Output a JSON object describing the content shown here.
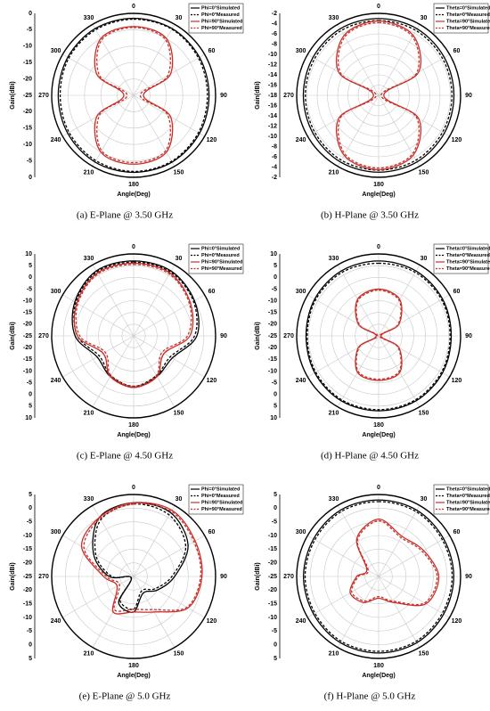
{
  "chart_data": [
    {
      "type": "polar",
      "title": "(a) E-Plane @ 3.50 GHz",
      "y_label": "Gain(dBi)",
      "x_label": "Angle(Deg)",
      "x": [
        0,
        30,
        60,
        90,
        120,
        150,
        180,
        210,
        240,
        270,
        300,
        330
      ],
      "rlim": [
        -25,
        0
      ],
      "rticks": [
        -25,
        -20,
        -15,
        -10,
        -5,
        0
      ],
      "grid": true,
      "legend": "upper right",
      "series": [
        {
          "name": "Phi=0°Simulated",
          "color": "#000000",
          "dash": false,
          "values": [
            -1.5,
            -1.5,
            -1.8,
            -2,
            -1.8,
            -1.5,
            -1.5,
            -1.5,
            -1.8,
            -2,
            -1.8,
            -1.5
          ]
        },
        {
          "name": "Phi=0°Measured",
          "color": "#000000",
          "dash": true,
          "values": [
            -1.8,
            -1.7,
            -2.2,
            -2.5,
            -2.2,
            -1.8,
            -1.8,
            -2,
            -2.3,
            -2.6,
            -2.2,
            -1.9
          ]
        },
        {
          "name": "Phi=90°Simulated",
          "color": "#c8302a",
          "dash": false,
          "values": [
            -4,
            -5,
            -12,
            -22,
            -12,
            -5,
            -4,
            -5,
            -12,
            -22,
            -12,
            -5
          ]
        },
        {
          "name": "Phi=90°Measured",
          "color": "#c8302a",
          "dash": true,
          "values": [
            -4.3,
            -5.5,
            -13,
            -23,
            -13,
            -5.5,
            -4.5,
            -5.5,
            -13,
            -23,
            -13,
            -5.5
          ]
        }
      ]
    },
    {
      "type": "polar",
      "title": "(b) H-Plane @ 3.50 GHz",
      "y_label": "Gain(dBi)",
      "x_label": "Angle(Deg)",
      "x": [
        0,
        30,
        60,
        90,
        120,
        150,
        180,
        210,
        240,
        270,
        300,
        330
      ],
      "rlim": [
        -18,
        -2
      ],
      "rticks": [
        -18,
        -16,
        -14,
        -12,
        -10,
        -8,
        -6,
        -4,
        -2
      ],
      "grid": true,
      "legend": "upper right",
      "series": [
        {
          "name": "Theta=0°Simulated",
          "color": "#000000",
          "dash": false,
          "values": [
            -3,
            -3,
            -3.2,
            -3.3,
            -3.2,
            -3,
            -3,
            -3,
            -3.2,
            -3.3,
            -3.2,
            -3
          ]
        },
        {
          "name": "Theta=0°Measured",
          "color": "#000000",
          "dash": true,
          "values": [
            -3.4,
            -3.4,
            -3.6,
            -3.7,
            -3.6,
            -3.4,
            -3.4,
            -3.4,
            -3.6,
            -3.7,
            -3.6,
            -3.4
          ]
        },
        {
          "name": "Theta=90°Simulated",
          "color": "#c8302a",
          "dash": false,
          "values": [
            -3.5,
            -4.5,
            -9,
            -17,
            -9,
            -4.5,
            -3.5,
            -4.5,
            -9,
            -17,
            -9,
            -4.5
          ]
        },
        {
          "name": "Theta=90°Measured",
          "color": "#c8302a",
          "dash": true,
          "values": [
            -3.8,
            -4.8,
            -9.5,
            -17.5,
            -9.5,
            -4.8,
            -3.8,
            -4.8,
            -9.5,
            -17.5,
            -9.5,
            -4.8
          ]
        }
      ]
    },
    {
      "type": "polar",
      "title": "(c) E-Plane @ 4.50 GHz",
      "y_label": "Gain(dBi)",
      "x_label": "Angle(Deg)",
      "x": [
        0,
        30,
        60,
        90,
        120,
        150,
        180,
        210,
        240,
        270,
        300,
        330
      ],
      "rlim": [
        -25,
        10
      ],
      "rticks": [
        -25,
        -20,
        -15,
        -10,
        -5,
        0,
        5,
        10
      ],
      "grid": true,
      "legend": "upper right",
      "series": [
        {
          "name": "Phi=0°Simulated",
          "color": "#000000",
          "dash": false,
          "values": [
            7,
            7,
            5,
            2,
            -6,
            -5,
            -3,
            -5,
            -7,
            0,
            4,
            7
          ]
        },
        {
          "name": "Phi=0°Measured",
          "color": "#000000",
          "dash": true,
          "values": [
            6.5,
            6.5,
            4.5,
            1,
            -7,
            -5.5,
            -3.5,
            -5.5,
            -8,
            -1,
            3.5,
            6.5
          ]
        },
        {
          "name": "Phi=90°Simulated",
          "color": "#c8302a",
          "dash": false,
          "values": [
            6,
            6,
            3,
            -1,
            -10,
            -5,
            -3,
            -5,
            -10,
            -1,
            3,
            6
          ]
        },
        {
          "name": "Phi=90°Measured",
          "color": "#c8302a",
          "dash": true,
          "values": [
            5.5,
            5.5,
            2.5,
            -2,
            -11,
            -5.5,
            -3.5,
            -5.5,
            -11,
            -2,
            2.5,
            5.5
          ]
        }
      ]
    },
    {
      "type": "polar",
      "title": "(d) H-Plane @ 4.50 GHz",
      "y_label": "Gain(dBi)",
      "x_label": "Angle(Deg)",
      "x": [
        0,
        30,
        60,
        90,
        120,
        150,
        180,
        210,
        240,
        270,
        300,
        330
      ],
      "rlim": [
        -25,
        10
      ],
      "rticks": [
        -25,
        -20,
        -15,
        -10,
        -5,
        0,
        5,
        10
      ],
      "grid": true,
      "legend": "upper right",
      "series": [
        {
          "name": "Theta=0°Simulated",
          "color": "#000000",
          "dash": false,
          "values": [
            7,
            7,
            6.5,
            6,
            6.5,
            7,
            7,
            7,
            6.5,
            6,
            6.5,
            7
          ]
        },
        {
          "name": "Theta=0°Measured",
          "color": "#000000",
          "dash": true,
          "values": [
            6,
            6.3,
            6,
            5.5,
            6,
            6.5,
            6.5,
            6.5,
            6,
            5.5,
            6,
            6.3
          ]
        },
        {
          "name": "Theta=90°Simulated",
          "color": "#c8302a",
          "dash": false,
          "values": [
            -5,
            -7,
            -15,
            -24,
            -15,
            -7,
            -6,
            -7,
            -15,
            -24,
            -15,
            -7
          ]
        },
        {
          "name": "Theta=90°Measured",
          "color": "#c8302a",
          "dash": true,
          "values": [
            -5.5,
            -7.5,
            -15.5,
            -24.5,
            -15.5,
            -7.5,
            -6.5,
            -7.5,
            -15.5,
            -24.5,
            -15.5,
            -7.5
          ]
        }
      ]
    },
    {
      "type": "polar",
      "title": "(e) E-Plane @ 5.0 GHz",
      "y_label": "Gain(dBi)",
      "x_label": "Angle(Deg)",
      "x": [
        0,
        30,
        60,
        90,
        120,
        150,
        180,
        210,
        240,
        270,
        300,
        330
      ],
      "rlim": [
        -25,
        5
      ],
      "rticks": [
        -25,
        -20,
        -15,
        -10,
        -5,
        0,
        5
      ],
      "grid": true,
      "legend": "upper right",
      "series": [
        {
          "name": "Phi=0°Simulated",
          "color": "#000000",
          "dash": false,
          "values": [
            2,
            2,
            -2,
            -10,
            -15,
            -18,
            -12,
            -14,
            -24,
            -16,
            -8,
            0
          ]
        },
        {
          "name": "Phi=0°Measured",
          "color": "#000000",
          "dash": true,
          "values": [
            1.5,
            1,
            -3,
            -11,
            -16,
            -19,
            -13,
            -15,
            -24,
            -17,
            -9,
            -1
          ]
        },
        {
          "name": "Phi=90°Simulated",
          "color": "#c8302a",
          "dash": false,
          "values": [
            2,
            3,
            1,
            0,
            -2,
            -10,
            -12,
            -10,
            -18,
            -14,
            -3,
            0
          ]
        },
        {
          "name": "Phi=90°Measured",
          "color": "#c8302a",
          "dash": true,
          "values": [
            1.5,
            2.5,
            0.5,
            -0.5,
            -2.5,
            -11,
            -13,
            -11,
            -19,
            -15,
            -4,
            -0.5
          ]
        }
      ]
    },
    {
      "type": "polar",
      "title": "(f) H-Plane @ 5.0 GHz",
      "y_label": "Gain(dBi)",
      "x_label": "Angle(Deg)",
      "x": [
        0,
        30,
        60,
        90,
        120,
        150,
        180,
        210,
        240,
        270,
        300,
        330
      ],
      "rlim": [
        -25,
        5
      ],
      "rticks": [
        -25,
        -20,
        -15,
        -10,
        -5,
        0,
        5
      ],
      "grid": true,
      "legend": "upper right",
      "series": [
        {
          "name": "Theta=0°Simulated",
          "color": "#000000",
          "dash": false,
          "values": [
            3,
            3,
            2.5,
            2.5,
            2.5,
            3,
            3,
            3,
            2.5,
            2.5,
            2.5,
            3
          ]
        },
        {
          "name": "Theta=0°Measured",
          "color": "#000000",
          "dash": true,
          "values": [
            2.4,
            2.4,
            1.9,
            1.9,
            1.9,
            2.4,
            2.4,
            2.4,
            1.9,
            1.9,
            1.9,
            2.4
          ]
        },
        {
          "name": "Theta=90°Simulated",
          "color": "#c8302a",
          "dash": false,
          "values": [
            -4,
            -8,
            -6,
            -3,
            -5,
            -14,
            -17,
            -14,
            -13,
            -17,
            -20,
            -9
          ]
        },
        {
          "name": "Theta=90°Measured",
          "color": "#c8302a",
          "dash": true,
          "values": [
            -4.6,
            -8.6,
            -6.6,
            -3.6,
            -5.6,
            -14.6,
            -17.6,
            -14.6,
            -13.6,
            -17.6,
            -20.6,
            -9.6
          ]
        }
      ]
    }
  ]
}
